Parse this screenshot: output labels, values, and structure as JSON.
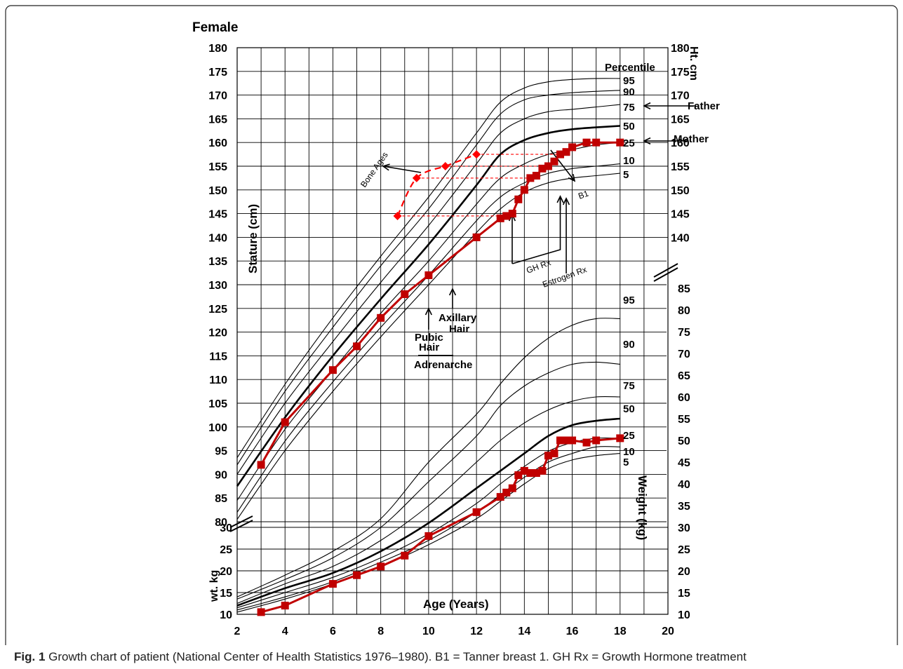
{
  "figure": {
    "caption_label": "Fig. 1",
    "caption_text": "Growth chart of patient (National Center of Health Statistics 1976–1980). B1 = Tanner breast 1. GH Rx = Growth Hormone treatment"
  },
  "chart_data": {
    "type": "line",
    "title": "Female",
    "xlabel": "Age (Years)",
    "ylabel_stature_left": "Stature (cm)",
    "ylabel_stature_right": "Ht. cm",
    "ylabel_weight_left": "wt. kg",
    "ylabel_weight_right": "Weight (kg)",
    "percentile_header": "Percentile",
    "x_range": [
      2,
      20
    ],
    "x_ticks": [
      "2",
      "4",
      "6",
      "8",
      "10",
      "12",
      "14",
      "16",
      "18",
      "20"
    ],
    "stature_range": [
      80,
      180
    ],
    "weight_range": [
      10,
      30
    ],
    "weight_right_range": [
      10,
      85
    ],
    "grid": true,
    "stature_ticks_left": [
      "80",
      "85",
      "90",
      "95",
      "100",
      "105",
      "110",
      "115",
      "120",
      "125",
      "130",
      "135",
      "140",
      "145",
      "150",
      "155",
      "160",
      "165",
      "170",
      "175",
      "180"
    ],
    "stature_ticks_right": [
      "140",
      "145",
      "150",
      "155",
      "160",
      "165",
      "170",
      "175",
      "180"
    ],
    "weight_ticks_left": [
      "10",
      "15",
      "20",
      "25",
      "30"
    ],
    "weight_ticks_right": [
      "10",
      "15",
      "20",
      "25",
      "30",
      "35",
      "40",
      "45",
      "50",
      "55",
      "60",
      "65",
      "70",
      "75",
      "80",
      "85"
    ],
    "stature_percentiles": [
      {
        "name": "5",
        "x": [
          2,
          4,
          6,
          8,
          10,
          12,
          13,
          14,
          15,
          16,
          17,
          18
        ],
        "y": [
          80.5,
          95,
          107.5,
          119,
          130,
          141,
          146,
          149.5,
          151.5,
          152.5,
          153,
          153.5
        ]
      },
      {
        "name": "10",
        "x": [
          2,
          4,
          6,
          8,
          10,
          12,
          13,
          14,
          15,
          16,
          17,
          18
        ],
        "y": [
          82,
          97,
          109.5,
          121,
          132,
          143.5,
          148.5,
          151.5,
          153.5,
          154.5,
          155,
          155.5
        ]
      },
      {
        "name": "25",
        "x": [
          2,
          4,
          6,
          8,
          10,
          12,
          13,
          14,
          15,
          16,
          17,
          18
        ],
        "y": [
          84.5,
          99.5,
          112,
          124,
          135,
          147,
          152.5,
          155.5,
          157.5,
          158.5,
          159.5,
          160
        ]
      },
      {
        "name": "50",
        "x": [
          2,
          4,
          6,
          8,
          10,
          12,
          13,
          14,
          15,
          16,
          17,
          18
        ],
        "y": [
          87.5,
          102,
          115,
          127,
          138.5,
          151,
          157.5,
          160.5,
          162,
          162.8,
          163.2,
          163.5
        ]
      },
      {
        "name": "75",
        "x": [
          2,
          4,
          6,
          8,
          10,
          12,
          13,
          14,
          15,
          16,
          17,
          18
        ],
        "y": [
          90,
          105,
          118,
          130.5,
          142.5,
          155.5,
          162,
          165,
          166.5,
          167,
          167.5,
          168
        ]
      },
      {
        "name": "90",
        "x": [
          2,
          4,
          6,
          8,
          10,
          12,
          13,
          14,
          15,
          16,
          17,
          18
        ],
        "y": [
          92,
          107.5,
          121,
          134,
          146,
          159.5,
          166,
          169,
          170,
          170.5,
          170.8,
          171
        ]
      },
      {
        "name": "95",
        "x": [
          2,
          4,
          6,
          8,
          10,
          12,
          13,
          14,
          15,
          16,
          17,
          18
        ],
        "y": [
          93.5,
          109,
          123,
          136,
          148.5,
          162,
          168.5,
          171.5,
          172.8,
          173.3,
          173.5,
          173.5
        ]
      }
    ],
    "weight_percentiles": [
      {
        "name": "5",
        "x": [
          2,
          4,
          6,
          8,
          10,
          12,
          13,
          14,
          15,
          16,
          17,
          18
        ],
        "y": [
          10.5,
          13.5,
          17,
          21,
          26,
          32,
          36,
          40,
          43.5,
          45.5,
          46.5,
          47
        ]
      },
      {
        "name": "10",
        "x": [
          2,
          4,
          6,
          8,
          10,
          12,
          13,
          14,
          15,
          16,
          17,
          18
        ],
        "y": [
          11,
          14,
          17.5,
          22,
          27,
          33.5,
          37.5,
          41.5,
          45,
          47,
          48.5,
          48.5
        ]
      },
      {
        "name": "25",
        "x": [
          2,
          4,
          6,
          8,
          10,
          12,
          13,
          14,
          15,
          16,
          17,
          18
        ],
        "y": [
          11.5,
          15,
          18.5,
          23,
          28.5,
          35.5,
          40,
          44,
          47.5,
          49.5,
          50.5,
          50.5
        ]
      },
      {
        "name": "50",
        "x": [
          2,
          4,
          6,
          8,
          10,
          12,
          13,
          14,
          15,
          16,
          17,
          18
        ],
        "y": [
          12,
          16,
          19.5,
          24.5,
          31,
          39,
          43,
          47,
          51,
          53.5,
          54.5,
          55
        ]
      },
      {
        "name": "75",
        "x": [
          2,
          4,
          6,
          8,
          10,
          12,
          13,
          14,
          15,
          16,
          17,
          18
        ],
        "y": [
          12.5,
          17,
          21,
          27,
          35,
          45,
          50,
          54,
          57,
          59,
          60,
          60
        ]
      },
      {
        "name": "90",
        "x": [
          2,
          4,
          6,
          8,
          10,
          12,
          13,
          14,
          15,
          16,
          17,
          18
        ],
        "y": [
          13.5,
          18,
          23,
          30,
          40.5,
          51,
          58,
          62.5,
          65.5,
          67.5,
          68,
          67.5
        ]
      },
      {
        "name": "95",
        "x": [
          2,
          4,
          6,
          8,
          10,
          12,
          13,
          14,
          15,
          16,
          17,
          18
        ],
        "y": [
          14,
          19,
          24.5,
          32,
          45,
          56,
          63,
          69,
          73.5,
          76.5,
          78,
          78
        ]
      }
    ],
    "patient_stature": {
      "x": [
        3,
        4,
        6,
        7,
        8,
        9,
        10,
        12,
        13,
        13.25,
        13.5,
        13.75,
        14,
        14.25,
        14.5,
        14.75,
        15,
        15.25,
        15.5,
        15.75,
        16,
        16.6,
        17,
        18
      ],
      "y": [
        92,
        101,
        112,
        117,
        123,
        128,
        132,
        140,
        144,
        144.5,
        145,
        148,
        150,
        152.5,
        153,
        154.5,
        155,
        156,
        157.5,
        158,
        159,
        160,
        160,
        160
      ]
    },
    "patient_weight": {
      "x": [
        3,
        4,
        6,
        7,
        8,
        9,
        10,
        12,
        13,
        13.25,
        13.5,
        13.75,
        14,
        14.25,
        14.5,
        14.75,
        15,
        15.25,
        15.5,
        15.75,
        16,
        16.6,
        17,
        18
      ],
      "y": [
        10.5,
        12,
        17,
        19,
        21,
        23.5,
        28,
        33.5,
        37,
        38,
        39,
        42,
        43,
        42.5,
        42.5,
        43,
        46.5,
        47,
        50,
        50,
        50,
        49.5,
        50,
        50.5
      ]
    },
    "bone_ages": {
      "x": [
        8.7,
        9.5,
        10.7,
        12
      ],
      "y": [
        144.5,
        152.5,
        155,
        157.5
      ],
      "label": "Bone Ages"
    },
    "bone_age_links": [
      {
        "bone_x": 8.7,
        "chrono_x": 13.5,
        "y": 144.5
      },
      {
        "bone_x": 9.5,
        "chrono_x": 14.25,
        "y": 152.5
      },
      {
        "bone_x": 10.7,
        "chrono_x": 14.75,
        "y": 155
      },
      {
        "bone_x": 12,
        "chrono_x": 15.5,
        "y": 157.5
      }
    ],
    "annotations": {
      "father": "Father",
      "mother": "Mother",
      "b1": "B1",
      "gh_rx": "GH Rx",
      "estrogen_rx": "Estrogen Rx",
      "axillary_hair": "Axillary\nHair",
      "pubic_hair": "Pubic\nHair",
      "adrenarche": "Adrenarche"
    },
    "colors": {
      "patient": "#c00000",
      "bone_age": "#ff0000",
      "grid": "#000000"
    }
  }
}
